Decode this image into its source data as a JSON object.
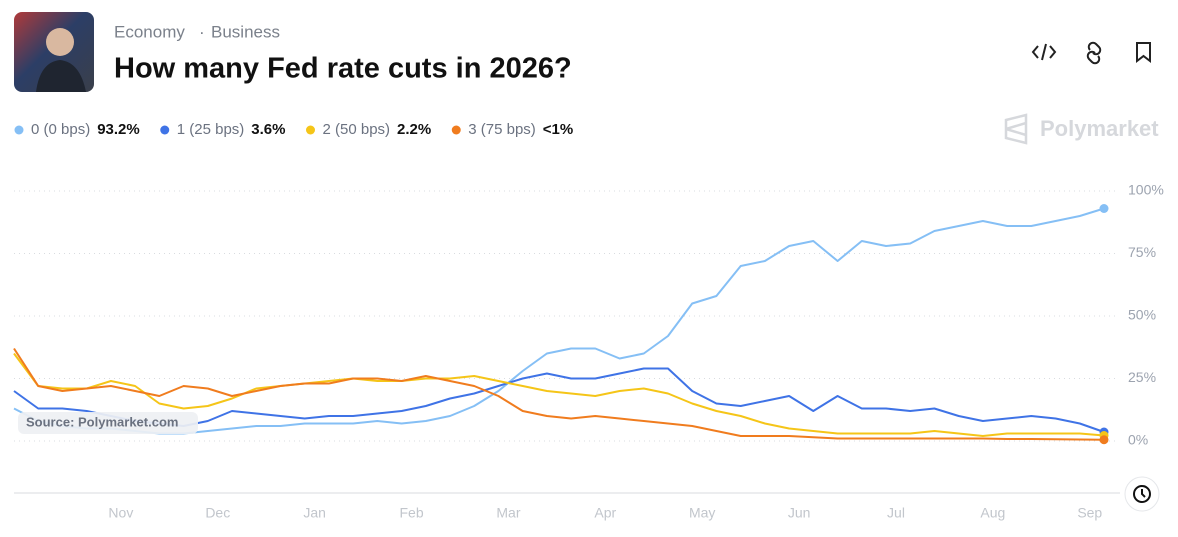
{
  "header": {
    "tags": [
      "Economy",
      "Business"
    ],
    "title": "How many Fed rate cuts in 2026?"
  },
  "brand": "Polymarket",
  "source": "Source: Polymarket.com",
  "chart_data": {
    "type": "line",
    "categories": [
      null,
      null,
      null,
      null,
      "Nov",
      null,
      null,
      null,
      "Dec",
      null,
      null,
      null,
      "Jan",
      null,
      null,
      null,
      "Feb",
      null,
      null,
      null,
      "Mar",
      null,
      null,
      null,
      "Apr",
      null,
      null,
      null,
      "May",
      null,
      null,
      null,
      "Jun",
      null,
      null,
      null,
      "Jul",
      null,
      null,
      null,
      "Aug",
      null,
      null,
      null,
      "Sep",
      null
    ],
    "ylim": [
      -21,
      110
    ],
    "yticks": [
      {
        "value": 0,
        "label": "0%"
      },
      {
        "value": 25,
        "label": "25%"
      },
      {
        "value": 50,
        "label": "50%"
      },
      {
        "value": 75,
        "label": "75%"
      },
      {
        "value": 100,
        "label": "100%"
      }
    ],
    "grid": true,
    "series": [
      {
        "name": "0 (0 bps)",
        "legend_value": "93.2%",
        "color": "#85bff5",
        "values": [
          13,
          8,
          6,
          5,
          5,
          4,
          3,
          3,
          4,
          5,
          6,
          6,
          7,
          7,
          7,
          8,
          7,
          8,
          10,
          14,
          20,
          28,
          35,
          37,
          37,
          33,
          35,
          42,
          55,
          58,
          70,
          72,
          78,
          80,
          72,
          80,
          78,
          79,
          84,
          86,
          88,
          86,
          86,
          88,
          90,
          93
        ]
      },
      {
        "name": "1 (25 bps)",
        "legend_value": "3.6%",
        "color": "#3f73e6",
        "values": [
          20,
          13,
          13,
          12,
          10,
          8,
          7,
          6,
          8,
          12,
          11,
          10,
          9,
          10,
          10,
          11,
          12,
          14,
          17,
          19,
          22,
          25,
          27,
          25,
          25,
          27,
          29,
          29,
          20,
          15,
          14,
          16,
          18,
          12,
          18,
          13,
          13,
          12,
          13,
          10,
          8,
          9,
          10,
          9,
          7,
          3.6
        ]
      },
      {
        "name": "2 (50 bps)",
        "legend_value": "2.2%",
        "color": "#f5c518",
        "values": [
          35,
          22,
          21,
          21,
          24,
          22,
          15,
          13,
          14,
          17,
          21,
          22,
          23,
          24,
          25,
          24,
          24,
          25,
          25,
          26,
          24,
          22,
          20,
          19,
          18,
          20,
          21,
          19,
          15,
          12,
          10,
          7,
          5,
          4,
          3,
          3,
          3,
          3,
          4,
          3,
          2,
          3,
          3,
          3,
          3,
          2.2
        ]
      },
      {
        "name": "3 (75 bps)",
        "legend_value": "<1%",
        "color": "#f07c1e",
        "values": [
          37,
          22,
          20,
          21,
          22,
          20,
          18,
          22,
          21,
          18,
          20,
          22,
          23,
          23,
          25,
          25,
          24,
          26,
          24,
          22,
          18,
          12,
          10,
          9,
          10,
          9,
          8,
          7,
          6,
          4,
          2,
          2,
          2,
          1.5,
          1,
          1,
          1,
          1,
          1,
          1,
          1,
          0.8,
          0.8,
          0.7,
          0.6,
          0.5
        ]
      }
    ]
  }
}
